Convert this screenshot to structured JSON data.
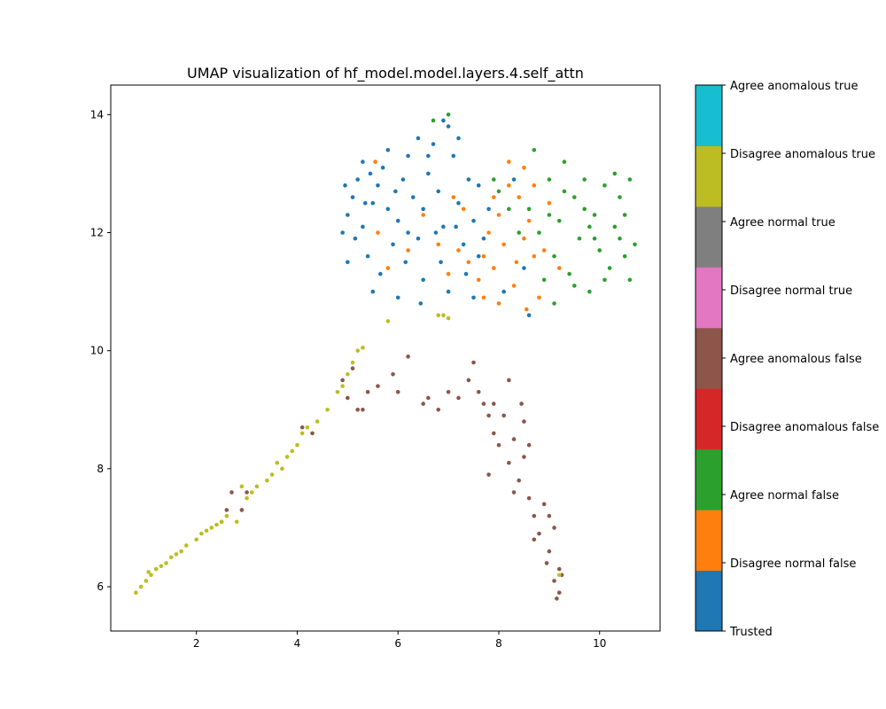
{
  "chart_data": {
    "type": "scatter",
    "title": "UMAP visualization of hf_model.model.layers.4.self_attn",
    "xlabel": "",
    "ylabel": "",
    "xlim": [
      0.3,
      11.2
    ],
    "ylim": [
      5.25,
      14.5
    ],
    "x_ticks": [
      2,
      4,
      6,
      8,
      10
    ],
    "y_ticks": [
      6,
      8,
      10,
      12,
      14
    ],
    "grid": false,
    "colorbar": {
      "position": "right",
      "labels": [
        "Trusted",
        "Disagree normal false",
        "Agree normal false",
        "Disagree anomalous false",
        "Agree anomalous false",
        "Disagree normal true",
        "Agree normal true",
        "Disagree anomalous true",
        "Agree anomalous true"
      ],
      "colors": [
        "#1f77b4",
        "#ff7f0e",
        "#2ca02c",
        "#d62728",
        "#8c564b",
        "#e377c2",
        "#7f7f7f",
        "#bcbd22",
        "#17becf"
      ]
    },
    "series": [
      {
        "label_index": 0,
        "color": "#1f77b4",
        "points": [
          [
            4.9,
            12.0
          ],
          [
            5.0,
            12.3
          ],
          [
            5.1,
            12.6
          ],
          [
            5.2,
            12.9
          ],
          [
            5.3,
            12.1
          ],
          [
            5.4,
            11.6
          ],
          [
            5.5,
            12.5
          ],
          [
            5.6,
            12.8
          ],
          [
            5.7,
            13.1
          ],
          [
            5.8,
            12.4
          ],
          [
            5.9,
            11.8
          ],
          [
            6.0,
            12.2
          ],
          [
            6.1,
            12.9
          ],
          [
            6.2,
            13.3
          ],
          [
            6.3,
            12.6
          ],
          [
            6.4,
            11.9
          ],
          [
            6.5,
            12.4
          ],
          [
            6.6,
            13.0
          ],
          [
            6.7,
            13.5
          ],
          [
            6.8,
            12.7
          ],
          [
            6.9,
            12.1
          ],
          [
            7.0,
            13.8
          ],
          [
            7.1,
            13.3
          ],
          [
            7.2,
            12.5
          ],
          [
            7.3,
            11.8
          ],
          [
            7.4,
            12.9
          ],
          [
            7.5,
            12.2
          ],
          [
            7.6,
            11.6
          ],
          [
            5.0,
            11.5
          ],
          [
            5.5,
            11.0
          ],
          [
            6.0,
            10.9
          ],
          [
            6.5,
            11.2
          ],
          [
            7.0,
            11.0
          ],
          [
            7.5,
            10.9
          ],
          [
            5.3,
            13.2
          ],
          [
            5.8,
            13.4
          ],
          [
            6.4,
            13.6
          ],
          [
            6.9,
            13.9
          ],
          [
            7.2,
            13.6
          ],
          [
            7.6,
            12.8
          ],
          [
            4.95,
            12.8
          ],
          [
            5.15,
            11.9
          ],
          [
            5.35,
            12.5
          ],
          [
            5.65,
            11.3
          ],
          [
            6.15,
            11.5
          ],
          [
            6.45,
            10.8
          ],
          [
            6.85,
            11.5
          ],
          [
            7.35,
            11.3
          ],
          [
            7.7,
            11.9
          ],
          [
            7.8,
            12.4
          ],
          [
            8.1,
            11.0
          ],
          [
            8.6,
            10.6
          ],
          [
            8.5,
            11.4
          ],
          [
            8.3,
            12.9
          ],
          [
            6.6,
            13.3
          ],
          [
            6.2,
            12.0
          ],
          [
            5.95,
            12.7
          ],
          [
            5.45,
            13.0
          ],
          [
            6.75,
            12.0
          ],
          [
            7.15,
            12.1
          ]
        ]
      },
      {
        "label_index": 1,
        "color": "#ff7f0e",
        "points": [
          [
            7.6,
            11.2
          ],
          [
            7.7,
            11.6
          ],
          [
            7.8,
            12.0
          ],
          [
            7.9,
            11.4
          ],
          [
            8.0,
            12.3
          ],
          [
            8.1,
            11.8
          ],
          [
            8.2,
            13.2
          ],
          [
            8.3,
            11.1
          ],
          [
            8.4,
            12.6
          ],
          [
            8.5,
            11.9
          ],
          [
            8.6,
            12.2
          ],
          [
            8.7,
            11.6
          ],
          [
            8.8,
            10.9
          ],
          [
            8.9,
            11.7
          ],
          [
            9.0,
            12.5
          ],
          [
            7.7,
            10.9
          ],
          [
            8.0,
            10.8
          ],
          [
            8.2,
            12.8
          ],
          [
            8.5,
            13.1
          ],
          [
            8.7,
            12.8
          ],
          [
            7.4,
            11.5
          ],
          [
            7.3,
            12.4
          ],
          [
            7.2,
            11.7
          ],
          [
            7.1,
            12.6
          ],
          [
            7.0,
            11.3
          ],
          [
            6.8,
            11.8
          ],
          [
            6.5,
            12.3
          ],
          [
            6.2,
            11.7
          ],
          [
            5.8,
            11.4
          ],
          [
            5.6,
            12.0
          ],
          [
            5.55,
            13.2
          ],
          [
            7.9,
            12.6
          ],
          [
            8.35,
            11.5
          ],
          [
            8.55,
            10.7
          ],
          [
            9.2,
            11.4
          ]
        ]
      },
      {
        "label_index": 2,
        "color": "#2ca02c",
        "points": [
          [
            8.6,
            12.4
          ],
          [
            8.8,
            12.0
          ],
          [
            9.0,
            12.9
          ],
          [
            9.1,
            11.6
          ],
          [
            9.2,
            12.2
          ],
          [
            9.3,
            13.2
          ],
          [
            9.4,
            11.3
          ],
          [
            9.5,
            12.6
          ],
          [
            9.6,
            11.9
          ],
          [
            9.7,
            12.9
          ],
          [
            9.8,
            11.0
          ],
          [
            9.9,
            12.3
          ],
          [
            10.0,
            11.7
          ],
          [
            10.1,
            12.8
          ],
          [
            10.2,
            11.4
          ],
          [
            10.3,
            12.1
          ],
          [
            10.4,
            12.6
          ],
          [
            10.5,
            11.6
          ],
          [
            10.6,
            12.9
          ],
          [
            10.7,
            11.8
          ],
          [
            8.9,
            11.2
          ],
          [
            9.1,
            10.8
          ],
          [
            9.3,
            12.7
          ],
          [
            9.5,
            11.1
          ],
          [
            9.7,
            12.4
          ],
          [
            9.9,
            11.9
          ],
          [
            10.1,
            11.2
          ],
          [
            10.3,
            13.0
          ],
          [
            10.5,
            12.3
          ],
          [
            8.4,
            12.0
          ],
          [
            8.2,
            12.4
          ],
          [
            8.0,
            12.7
          ],
          [
            7.9,
            12.9
          ],
          [
            8.7,
            13.4
          ],
          [
            7.0,
            14.0
          ],
          [
            6.7,
            13.9
          ],
          [
            10.6,
            11.2
          ],
          [
            10.4,
            11.9
          ],
          [
            9.8,
            12.1
          ],
          [
            9.0,
            12.3
          ]
        ]
      },
      {
        "label_index": 4,
        "color": "#8c564b",
        "points": [
          [
            4.9,
            9.5
          ],
          [
            5.0,
            9.2
          ],
          [
            5.1,
            9.7
          ],
          [
            5.2,
            9.0
          ],
          [
            5.4,
            9.3
          ],
          [
            5.6,
            9.4
          ],
          [
            5.9,
            9.6
          ],
          [
            6.2,
            9.9
          ],
          [
            6.5,
            9.1
          ],
          [
            6.6,
            9.2
          ],
          [
            6.8,
            9.0
          ],
          [
            7.0,
            9.3
          ],
          [
            7.2,
            9.2
          ],
          [
            7.4,
            9.5
          ],
          [
            7.5,
            9.8
          ],
          [
            7.6,
            9.3
          ],
          [
            7.7,
            9.1
          ],
          [
            7.8,
            8.9
          ],
          [
            7.9,
            8.6
          ],
          [
            8.0,
            8.4
          ],
          [
            8.1,
            8.9
          ],
          [
            8.2,
            8.1
          ],
          [
            8.3,
            8.5
          ],
          [
            8.4,
            7.8
          ],
          [
            8.5,
            8.2
          ],
          [
            8.6,
            7.5
          ],
          [
            8.7,
            7.2
          ],
          [
            8.8,
            6.9
          ],
          [
            8.9,
            7.4
          ],
          [
            9.0,
            6.6
          ],
          [
            9.1,
            7.0
          ],
          [
            9.2,
            6.3
          ],
          [
            9.15,
            5.8
          ],
          [
            9.2,
            5.9
          ],
          [
            9.1,
            6.1
          ],
          [
            9.25,
            6.2
          ],
          [
            8.95,
            6.4
          ],
          [
            8.5,
            8.8
          ],
          [
            8.2,
            9.5
          ],
          [
            7.9,
            9.1
          ],
          [
            6.0,
            9.3
          ],
          [
            5.3,
            9.0
          ],
          [
            4.3,
            8.6
          ],
          [
            4.1,
            8.7
          ],
          [
            2.9,
            7.3
          ],
          [
            2.6,
            7.3
          ],
          [
            2.7,
            7.6
          ],
          [
            2.5,
            7.1
          ],
          [
            3.0,
            7.6
          ],
          [
            7.8,
            7.9
          ],
          [
            8.3,
            7.6
          ],
          [
            8.7,
            6.8
          ],
          [
            9.0,
            7.2
          ],
          [
            8.6,
            8.4
          ],
          [
            8.45,
            9.1
          ]
        ]
      },
      {
        "label_index": 7,
        "color": "#bcbd22",
        "points": [
          [
            0.8,
            5.9
          ],
          [
            0.9,
            6.0
          ],
          [
            1.0,
            6.1
          ],
          [
            1.1,
            6.2
          ],
          [
            1.2,
            6.3
          ],
          [
            1.3,
            6.35
          ],
          [
            1.4,
            6.4
          ],
          [
            1.5,
            6.5
          ],
          [
            1.6,
            6.55
          ],
          [
            1.7,
            6.6
          ],
          [
            1.8,
            6.7
          ],
          [
            2.0,
            6.8
          ],
          [
            2.1,
            6.9
          ],
          [
            2.2,
            6.95
          ],
          [
            2.3,
            7.0
          ],
          [
            2.4,
            7.05
          ],
          [
            2.5,
            7.1
          ],
          [
            2.6,
            7.2
          ],
          [
            2.8,
            7.1
          ],
          [
            3.0,
            7.5
          ],
          [
            3.1,
            7.6
          ],
          [
            3.2,
            7.7
          ],
          [
            3.4,
            7.8
          ],
          [
            3.5,
            7.9
          ],
          [
            3.7,
            8.0
          ],
          [
            3.8,
            8.2
          ],
          [
            3.9,
            8.3
          ],
          [
            4.0,
            8.4
          ],
          [
            4.1,
            8.6
          ],
          [
            4.2,
            8.7
          ],
          [
            4.4,
            8.8
          ],
          [
            4.6,
            9.0
          ],
          [
            4.8,
            9.3
          ],
          [
            4.9,
            9.4
          ],
          [
            5.0,
            9.6
          ],
          [
            5.1,
            9.8
          ],
          [
            5.2,
            10.0
          ],
          [
            5.3,
            10.05
          ],
          [
            5.8,
            10.5
          ],
          [
            6.8,
            10.6
          ],
          [
            7.0,
            10.55
          ],
          [
            6.9,
            10.6
          ],
          [
            9.2,
            6.2
          ],
          [
            3.6,
            8.1
          ],
          [
            2.9,
            7.7
          ],
          [
            1.05,
            6.25
          ]
        ]
      }
    ]
  }
}
